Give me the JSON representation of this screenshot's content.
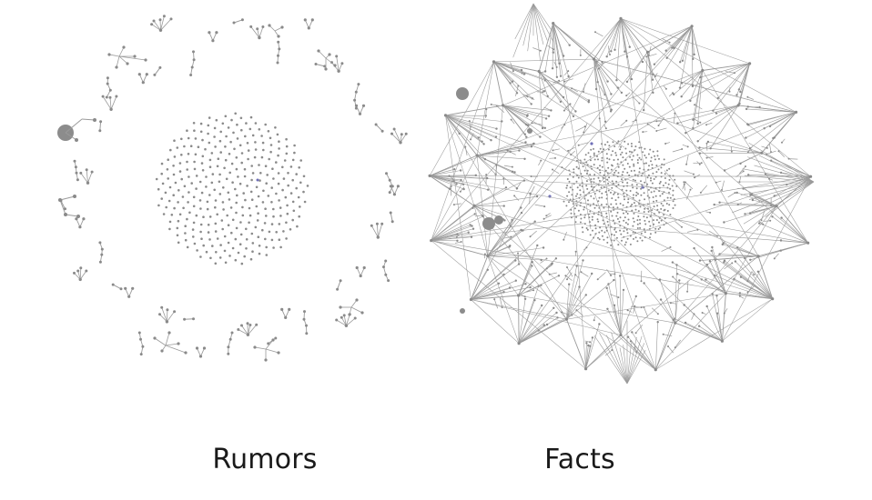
{
  "captions": {
    "rumors": "Rumors",
    "facts": "Facts"
  },
  "colors": {
    "background": "#ffffff",
    "edge": "#9a9a9a",
    "node": "#8a8a8a",
    "hub_node": "#8c8c8c",
    "accent_node": "#6f6fb8",
    "text": "#1a1a1a"
  }
}
